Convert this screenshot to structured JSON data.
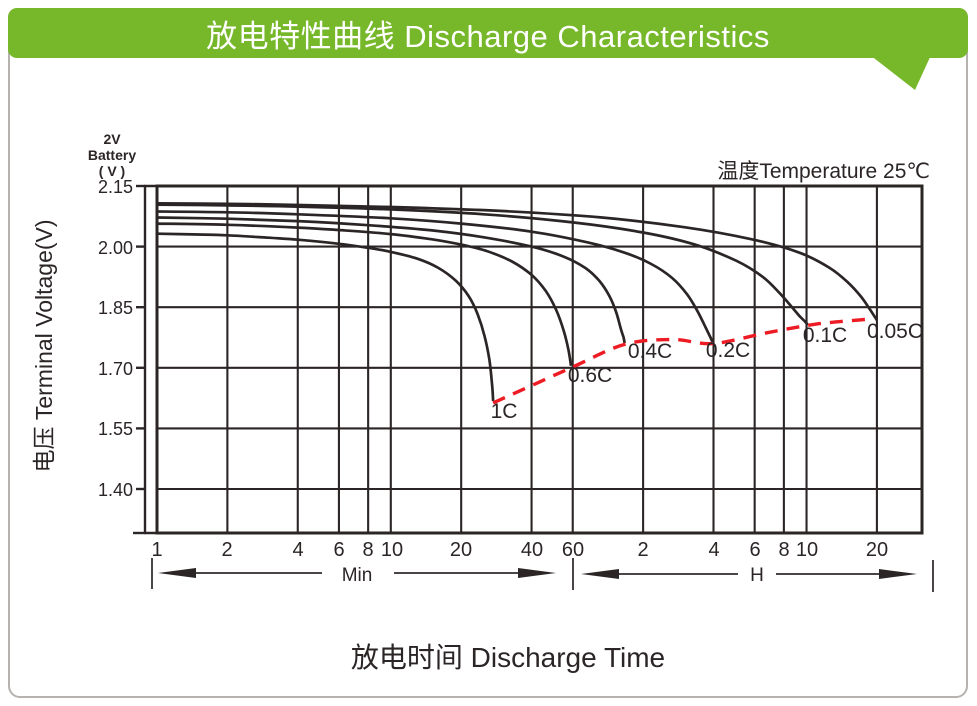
{
  "header": {
    "title": "放电特性曲线  Discharge Characteristics",
    "bg_color": "#76b82a",
    "text_color": "#ffffff"
  },
  "chart_data": {
    "type": "line",
    "title": "放电特性曲线 Discharge Characteristics",
    "xlabel": "放电时间  Discharge Time",
    "ylabel": "电压 Terminal Voltage(V)",
    "battery_label": {
      "line1": "2V",
      "line2": "Battery",
      "line3": "( V )"
    },
    "annotation": "温度Temperature 25℃",
    "x_scale": "log",
    "xlim_minutes": [
      1,
      1870
    ],
    "ylim": [
      1.29,
      2.15
    ],
    "grid": "on",
    "colors": {
      "curve": "#2b2526",
      "cutoff": "#ed1c24",
      "ink": "#2b2526"
    },
    "x_ticks": [
      {
        "label": "1",
        "minutes": 1
      },
      {
        "label": "2",
        "minutes": 2
      },
      {
        "label": "4",
        "minutes": 4
      },
      {
        "label": "6",
        "minutes": 6
      },
      {
        "label": "8",
        "minutes": 8
      },
      {
        "label": "10",
        "minutes": 10
      },
      {
        "label": "20",
        "minutes": 20
      },
      {
        "label": "40",
        "minutes": 40
      },
      {
        "label": "60",
        "minutes": 60
      },
      {
        "label": "2",
        "minutes": 120
      },
      {
        "label": "4",
        "minutes": 240
      },
      {
        "label": "6",
        "minutes": 360
      },
      {
        "label": "8",
        "minutes": 480
      },
      {
        "label": "10",
        "minutes": 600
      },
      {
        "label": "20",
        "minutes": 1200
      }
    ],
    "y_ticks": [
      {
        "label": "2.15",
        "volts": 2.15
      },
      {
        "label": "2.00",
        "volts": 2.0
      },
      {
        "label": "1.85",
        "volts": 1.85
      },
      {
        "label": "1.70",
        "volts": 1.7
      },
      {
        "label": "1.55",
        "volts": 1.55
      },
      {
        "label": "1.40",
        "volts": 1.4
      }
    ],
    "x_unit_ranges": [
      {
        "label": "Min"
      },
      {
        "label": "H"
      }
    ],
    "series": [
      {
        "name": "1C",
        "points": [
          [
            1,
            2.032
          ],
          [
            1.5,
            2.03
          ],
          [
            2,
            2.028
          ],
          [
            3,
            2.022
          ],
          [
            4,
            2.017
          ],
          [
            6,
            2.007
          ],
          [
            8,
            1.997
          ],
          [
            10,
            1.987
          ],
          [
            13,
            1.97
          ],
          [
            16,
            1.947
          ],
          [
            19,
            1.915
          ],
          [
            21.5,
            1.878
          ],
          [
            23.5,
            1.833
          ],
          [
            25.2,
            1.778
          ],
          [
            26.4,
            1.72
          ],
          [
            27.1,
            1.66
          ],
          [
            27.4,
            1.618
          ]
        ]
      },
      {
        "name": "0.6C",
        "points": [
          [
            1,
            2.057
          ],
          [
            2,
            2.054
          ],
          [
            4,
            2.047
          ],
          [
            6,
            2.041
          ],
          [
            10,
            2.031
          ],
          [
            15,
            2.018
          ],
          [
            20,
            2.005
          ],
          [
            26,
            1.988
          ],
          [
            33,
            1.963
          ],
          [
            40,
            1.93
          ],
          [
            46,
            1.89
          ],
          [
            51,
            1.843
          ],
          [
            55,
            1.79
          ],
          [
            57.5,
            1.745
          ],
          [
            59,
            1.705
          ]
        ]
      },
      {
        "name": "0.4C",
        "points": [
          [
            1,
            2.072
          ],
          [
            2,
            2.069
          ],
          [
            4,
            2.063
          ],
          [
            8,
            2.053
          ],
          [
            15,
            2.04
          ],
          [
            25,
            2.023
          ],
          [
            40,
            2.0
          ],
          [
            55,
            1.975
          ],
          [
            68,
            1.947
          ],
          [
            78,
            1.915
          ],
          [
            86,
            1.878
          ],
          [
            92,
            1.838
          ],
          [
            96.5,
            1.795
          ],
          [
            99,
            1.775
          ],
          [
            100,
            1.761
          ]
        ]
      },
      {
        "name": "0.2C",
        "points": [
          [
            1,
            2.087
          ],
          [
            2,
            2.085
          ],
          [
            4,
            2.08
          ],
          [
            10,
            2.07
          ],
          [
            20,
            2.057
          ],
          [
            40,
            2.037
          ],
          [
            70,
            2.01
          ],
          [
            100,
            1.985
          ],
          [
            130,
            1.957
          ],
          [
            160,
            1.922
          ],
          [
            185,
            1.882
          ],
          [
            205,
            1.84
          ],
          [
            222,
            1.8
          ],
          [
            233,
            1.775
          ],
          [
            239,
            1.761
          ]
        ]
      },
      {
        "name": "0.1C",
        "points": [
          [
            1,
            2.104
          ],
          [
            2,
            2.102
          ],
          [
            4,
            2.099
          ],
          [
            10,
            2.092
          ],
          [
            25,
            2.08
          ],
          [
            60,
            2.06
          ],
          [
            120,
            2.035
          ],
          [
            200,
            2.005
          ],
          [
            300,
            1.965
          ],
          [
            390,
            1.925
          ],
          [
            460,
            1.885
          ],
          [
            520,
            1.85
          ],
          [
            560,
            1.828
          ],
          [
            590,
            1.815
          ],
          [
            608,
            1.806
          ]
        ]
      },
      {
        "name": "0.05C",
        "points": [
          [
            1,
            2.107
          ],
          [
            2,
            2.106
          ],
          [
            4,
            2.103
          ],
          [
            10,
            2.098
          ],
          [
            30,
            2.088
          ],
          [
            80,
            2.072
          ],
          [
            180,
            2.048
          ],
          [
            350,
            2.018
          ],
          [
            560,
            1.985
          ],
          [
            750,
            1.948
          ],
          [
            900,
            1.912
          ],
          [
            1020,
            1.878
          ],
          [
            1110,
            1.848
          ],
          [
            1170,
            1.828
          ],
          [
            1200,
            1.818
          ]
        ]
      }
    ],
    "cutoff_line": {
      "name": "discharge-end-voltage",
      "style": "dashed",
      "points": [
        [
          27.4,
          1.613
        ],
        [
          59,
          1.7
        ],
        [
          100,
          1.758
        ],
        [
          160,
          1.77
        ],
        [
          239,
          1.76
        ],
        [
          400,
          1.786
        ],
        [
          608,
          1.805
        ],
        [
          750,
          1.812
        ],
        [
          1090,
          1.82
        ]
      ]
    }
  }
}
